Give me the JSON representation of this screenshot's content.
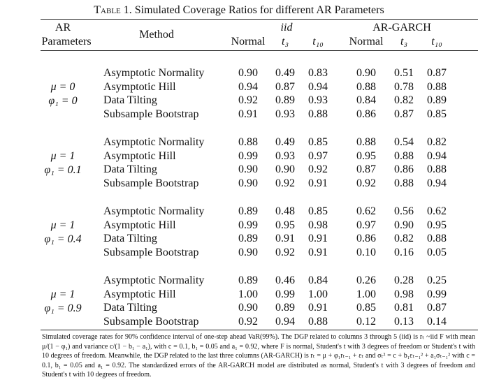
{
  "title_label": "Table 1.",
  "title": "Simulated Coverage Ratios for different AR Parameters",
  "header": {
    "params": [
      "AR",
      "Parameters"
    ],
    "method": "Method",
    "groups": [
      "iid",
      "AR-GARCH"
    ],
    "columns": [
      "Normal",
      "t₃",
      "t₁₀",
      "Normal",
      "t₃",
      "t₁₀"
    ]
  },
  "groups": [
    {
      "params": [
        "μ = 0",
        "φ₁ = 0"
      ],
      "rows": [
        {
          "method": "Asymptotic Normality",
          "values": [
            "0.90",
            "0.49",
            "0.83",
            "0.90",
            "0.51",
            "0.87"
          ]
        },
        {
          "method": "Asymptotic Hill",
          "values": [
            "0.94",
            "0.87",
            "0.94",
            "0.88",
            "0.78",
            "0.88"
          ]
        },
        {
          "method": "Data Tilting",
          "values": [
            "0.92",
            "0.89",
            "0.93",
            "0.84",
            "0.82",
            "0.89"
          ]
        },
        {
          "method": "Subsample Bootstrap",
          "values": [
            "0.91",
            "0.93",
            "0.88",
            "0.86",
            "0.87",
            "0.85"
          ]
        }
      ]
    },
    {
      "params": [
        "μ = 1",
        "φ₁ = 0.1"
      ],
      "rows": [
        {
          "method": "Asymptotic Normality",
          "values": [
            "0.88",
            "0.49",
            "0.85",
            "0.88",
            "0.54",
            "0.82"
          ]
        },
        {
          "method": "Asymptotic Hill",
          "values": [
            "0.99",
            "0.93",
            "0.97",
            "0.95",
            "0.88",
            "0.94"
          ]
        },
        {
          "method": "Data Tilting",
          "values": [
            "0.90",
            "0.90",
            "0.92",
            "0.87",
            "0.86",
            "0.88"
          ]
        },
        {
          "method": "Subsample Bootstrap",
          "values": [
            "0.90",
            "0.92",
            "0.91",
            "0.92",
            "0.88",
            "0.94"
          ]
        }
      ]
    },
    {
      "params": [
        "μ = 1",
        "φ₁ = 0.4"
      ],
      "rows": [
        {
          "method": "Asymptotic Normality",
          "values": [
            "0.89",
            "0.48",
            "0.85",
            "0.62",
            "0.56",
            "0.62"
          ]
        },
        {
          "method": "Asymptotic Hill",
          "values": [
            "0.99",
            "0.95",
            "0.98",
            "0.97",
            "0.90",
            "0.95"
          ]
        },
        {
          "method": "Data Tilting",
          "values": [
            "0.89",
            "0.91",
            "0.91",
            "0.86",
            "0.82",
            "0.88"
          ]
        },
        {
          "method": "Subsample Bootstrap",
          "values": [
            "0.90",
            "0.92",
            "0.91",
            "0.10",
            "0.16",
            "0.05"
          ]
        }
      ]
    },
    {
      "params": [
        "μ = 1",
        "φ₁ = 0.9"
      ],
      "rows": [
        {
          "method": "Asymptotic Normality",
          "values": [
            "0.89",
            "0.46",
            "0.84",
            "0.26",
            "0.28",
            "0.25"
          ]
        },
        {
          "method": "Asymptotic Hill",
          "values": [
            "1.00",
            "0.99",
            "1.00",
            "1.00",
            "0.98",
            "0.99"
          ]
        },
        {
          "method": "Data Tilting",
          "values": [
            "0.90",
            "0.89",
            "0.91",
            "0.85",
            "0.81",
            "0.87"
          ]
        },
        {
          "method": "Subsample Bootstrap",
          "values": [
            "0.92",
            "0.94",
            "0.88",
            "0.12",
            "0.13",
            "0.14"
          ]
        }
      ]
    }
  ],
  "footnote": "Simulated coverage rates for 90% confidence interval of one-step ahead VaR(99%). The DGP related to columns 3 through 5 (iid) is rₜ ~iid F with mean μ/(1 − φ₁) and variance c/(1 − b₁ − a₁), with c = 0.1, b₁ = 0.05 and a₁ = 0.92, where F is normal, Student's t with 3 degrees of freedom or Student's t with 10 degrees of freedom. Meanwhile, the DGP related to the last three columns (AR-GARCH) is rₜ = μ + φ₁rₜ₋₁ + εₜ and σₜ² = c + b₁εₜ₋₁² + a₁σₜ₋₁² with c = 0.1, b₁ = 0.05 and a₁ = 0.92. The standardized errors of the AR-GARCH model are distributed as normal, Student's t with 3 degrees of freedom and Student's t with 10 degrees of freedom."
}
